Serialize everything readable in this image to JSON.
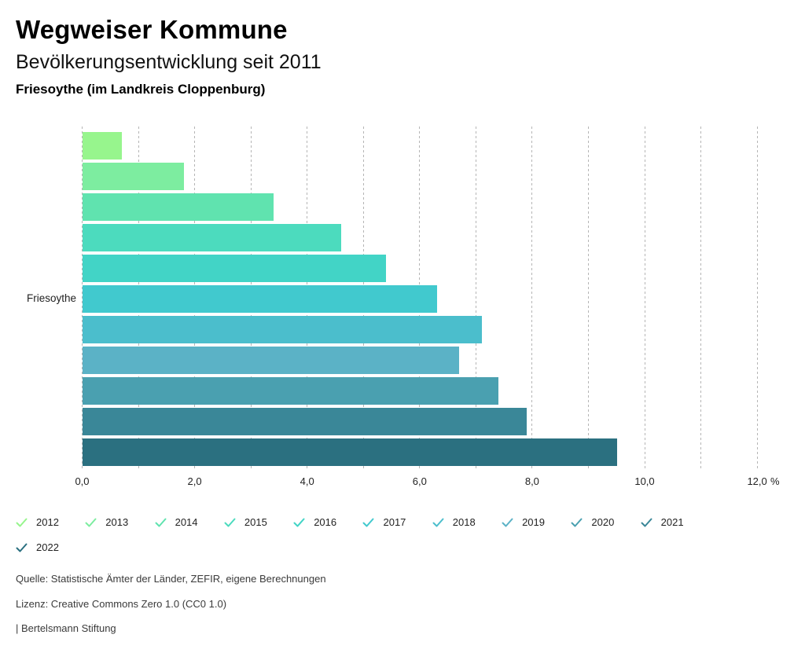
{
  "header": {
    "title": "Wegweiser Kommune",
    "subtitle": "Bevölkerungsentwicklung seit 2011",
    "region": "Friesoythe (im Landkreis Cloppenburg)"
  },
  "chart_data": {
    "type": "bar",
    "orientation": "horizontal",
    "title": "Bevölkerungsentwicklung seit 2011",
    "row_label": "Friesoythe",
    "categories": [
      "2012",
      "2013",
      "2014",
      "2015",
      "2016",
      "2017",
      "2018",
      "2019",
      "2020",
      "2021",
      "2022"
    ],
    "values": [
      0.7,
      1.8,
      3.4,
      4.6,
      5.4,
      6.3,
      7.1,
      6.7,
      7.4,
      7.9,
      9.5
    ],
    "colors": [
      "#97F58D",
      "#7DEDA0",
      "#60E3AF",
      "#4CDBBE",
      "#42D4C6",
      "#41C9CE",
      "#4BBECC",
      "#5BB2C6",
      "#4AA0B0",
      "#3A8798",
      "#2B7080"
    ],
    "xlabel_unit": "%",
    "x_ticks": [
      "0,0",
      "2,0",
      "4,0",
      "6,0",
      "8,0",
      "10,0",
      "12,0"
    ],
    "x_tick_values": [
      0,
      2,
      4,
      6,
      8,
      10,
      12
    ],
    "xlim": [
      0,
      12.6
    ],
    "grid": "vertical dotted lines every 1.0",
    "legend_position": "bottom"
  },
  "legend": {
    "items": [
      {
        "year": "2012",
        "color": "#97F58D"
      },
      {
        "year": "2013",
        "color": "#7DEDA0"
      },
      {
        "year": "2014",
        "color": "#60E3AF"
      },
      {
        "year": "2015",
        "color": "#4CDBBE"
      },
      {
        "year": "2016",
        "color": "#42D4C6"
      },
      {
        "year": "2017",
        "color": "#41C9CE"
      },
      {
        "year": "2018",
        "color": "#4BBECC"
      },
      {
        "year": "2019",
        "color": "#5BB2C6"
      },
      {
        "year": "2020",
        "color": "#4AA0B0"
      },
      {
        "year": "2021",
        "color": "#3A8798"
      },
      {
        "year": "2022",
        "color": "#2B7080"
      }
    ]
  },
  "footer": {
    "source": "Quelle: Statistische Ämter der Länder, ZEFIR, eigene Berechnungen",
    "license": "Lizenz: Creative Commons Zero 1.0 (CC0 1.0)",
    "attribution": "| Bertelsmann Stiftung"
  }
}
